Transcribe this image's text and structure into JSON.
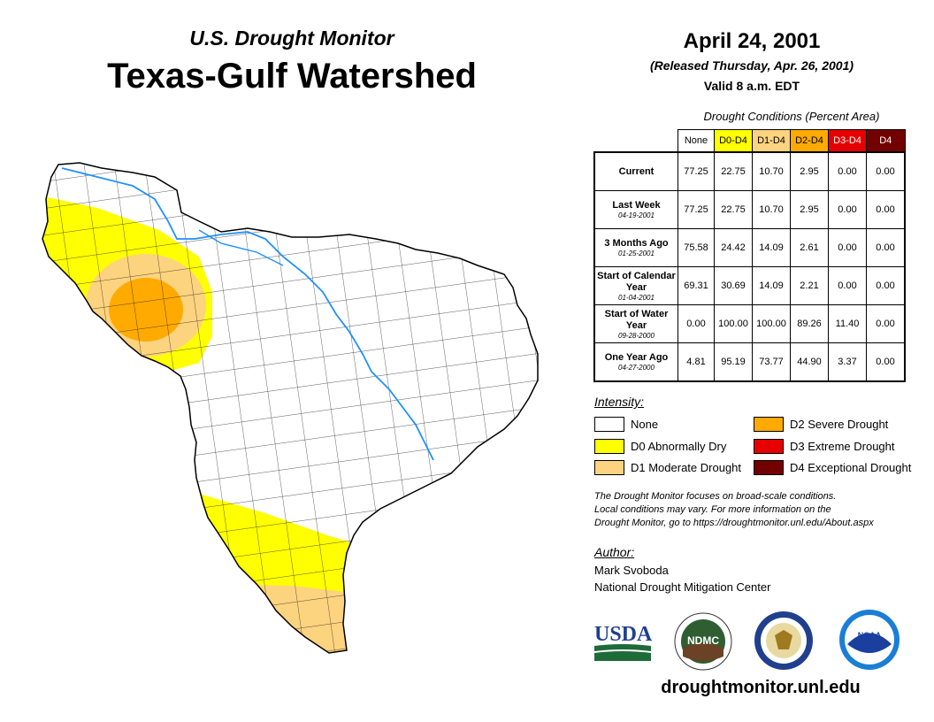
{
  "header": {
    "subtitle": "U.S. Drought Monitor",
    "title": "Texas-Gulf Watershed",
    "date": "April 24, 2001",
    "released": "(Released Thursday, Apr. 26, 2001)",
    "valid": "Valid 8 a.m. EDT"
  },
  "table": {
    "caption": "Drought Conditions (Percent Area)",
    "columns": [
      "None",
      "D0-D4",
      "D1-D4",
      "D2-D4",
      "D3-D4",
      "D4"
    ],
    "column_colors": [
      "#ffffff",
      "#ffff00",
      "#fcd37f",
      "#ffaa00",
      "#e60000",
      "#730000"
    ],
    "rows": [
      {
        "label": "Current",
        "date": "",
        "values": [
          "77.25",
          "22.75",
          "10.70",
          "2.95",
          "0.00",
          "0.00"
        ]
      },
      {
        "label": "Last Week",
        "date": "04-19-2001",
        "values": [
          "77.25",
          "22.75",
          "10.70",
          "2.95",
          "0.00",
          "0.00"
        ]
      },
      {
        "label": "3 Months Ago",
        "date": "01-25-2001",
        "values": [
          "75.58",
          "24.42",
          "14.09",
          "2.61",
          "0.00",
          "0.00"
        ]
      },
      {
        "label": "Start of Calendar Year",
        "date": "01-04-2001",
        "values": [
          "69.31",
          "30.69",
          "14.09",
          "2.21",
          "0.00",
          "0.00"
        ]
      },
      {
        "label": "Start of Water Year",
        "date": "09-28-2000",
        "values": [
          "0.00",
          "100.00",
          "100.00",
          "89.26",
          "11.40",
          "0.00"
        ]
      },
      {
        "label": "One Year Ago",
        "date": "04-27-2000",
        "values": [
          "4.81",
          "95.19",
          "73.77",
          "44.90",
          "3.37",
          "0.00"
        ]
      }
    ]
  },
  "legend": {
    "title": "Intensity:",
    "items": [
      {
        "label": "None",
        "color": "#ffffff"
      },
      {
        "label": "D0 Abnormally Dry",
        "color": "#ffff00"
      },
      {
        "label": "D1 Moderate Drought",
        "color": "#fcd37f"
      },
      {
        "label": "D2 Severe Drought",
        "color": "#ffaa00"
      },
      {
        "label": "D3 Extreme Drought",
        "color": "#e60000"
      },
      {
        "label": "D4 Exceptional Drought",
        "color": "#730000"
      }
    ]
  },
  "note": {
    "line1": "The Drought Monitor focuses on broad-scale conditions.",
    "line2": "Local conditions may vary. For more information on the",
    "line3": "Drought Monitor, go to https://droughtmonitor.unl.edu/About.aspx"
  },
  "author": {
    "title": "Author:",
    "name": "Mark Svoboda",
    "org": "National Drought Mitigation Center"
  },
  "logos": {
    "usda": "USDA",
    "ndmc": "NDMC",
    "noaa": "NOAA"
  },
  "url": "droughtmonitor.unl.edu"
}
